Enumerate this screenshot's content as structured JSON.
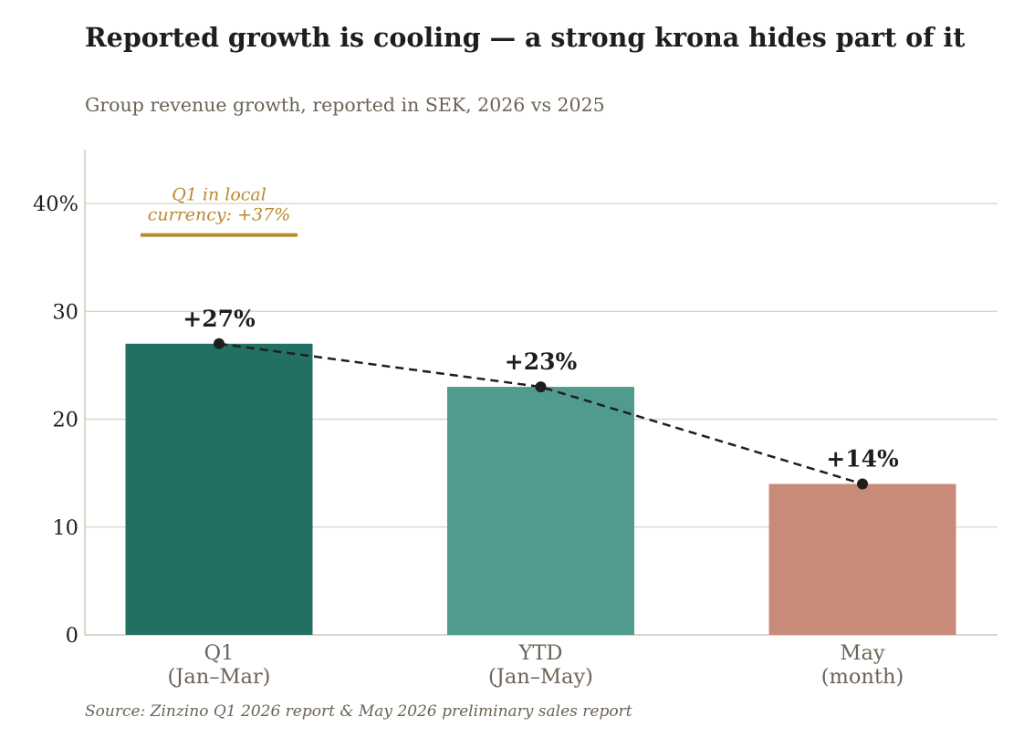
{
  "title": "Reported growth is cooling — a strong krona hides part of it",
  "subtitle": "Group revenue growth, reported in SEK, 2026 vs 2025",
  "source": "Source: Zinzino Q1 2026 report & May 2026 preliminary sales report",
  "chart_data": {
    "type": "bar",
    "categories": [
      [
        "Q1",
        "(Jan–Mar)"
      ],
      [
        "YTD",
        "(Jan–May)"
      ],
      [
        "May",
        "(month)"
      ]
    ],
    "values": [
      27,
      23,
      14
    ],
    "data_labels": [
      "+27%",
      "+23%",
      "+14%"
    ],
    "colors": [
      "#217063",
      "#509b8e",
      "#c98b79"
    ],
    "ylim": [
      0,
      45
    ],
    "yticks": [
      0,
      10,
      20,
      30,
      40
    ],
    "ytick_labels": [
      "0",
      "10",
      "20",
      "30",
      "40%"
    ],
    "grid": true,
    "trend_line": {
      "style": "dashed",
      "color": "#1e1e1c"
    },
    "annotation": {
      "text": [
        "Q1 in local",
        "currency: +37%"
      ],
      "value": 37,
      "category": 0,
      "color": "#b88a2d"
    },
    "colors_ui": {
      "grid": "#d9d4c6",
      "axis": "#cfc9b8",
      "tick_text": "#1e1e1c",
      "category_text": "#6b6356",
      "label_text": "#1e1e1c"
    }
  }
}
